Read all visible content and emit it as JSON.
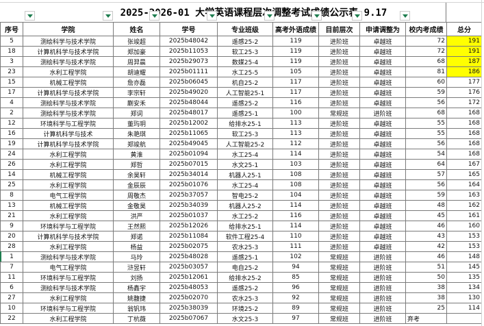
{
  "title": "2025-2026-01 大学英语课程层次调整考试成绩公示表 9.17",
  "highlight_color": "#ffff00",
  "columns": [
    "序号",
    "学院",
    "姓名",
    "学号",
    "专业班级",
    "高考外语成绩",
    "目前层次",
    "申请调整为",
    "校内考成绩",
    "总分"
  ],
  "rows": [
    [
      "5",
      "测绘科学与技术学院",
      "张竣超",
      "2025b48042",
      "遥感25-2",
      "119",
      "进阶班",
      "卓越班",
      "72",
      "191"
    ],
    [
      "18",
      "计算机科学与技术学院",
      "郑加豪",
      "2025b11053",
      "软工25-3",
      "119",
      "进阶班",
      "卓越班",
      "72",
      "191"
    ],
    [
      "3",
      "测绘科学与技术学院",
      "周羿晨",
      "2025b29073",
      "数媒25-4",
      "119",
      "进阶班",
      "卓越班",
      "68",
      "187"
    ],
    [
      "23",
      "水利工程学院",
      "胡迪耀",
      "2025b01111",
      "水工25-5",
      "105",
      "进阶班",
      "卓越班",
      "81",
      "186"
    ],
    [
      "15",
      "机械工程学院",
      "詹亦磊",
      "2025b06045",
      "机自25-2",
      "117",
      "进阶班",
      "卓越班",
      "60",
      "177"
    ],
    [
      "17",
      "计算机科学与技术学院",
      "李宗轩",
      "2025b49020",
      "人工智能25-1",
      "117",
      "进阶班",
      "卓越班",
      "59",
      "176"
    ],
    [
      "4",
      "测绘科学与技术学院",
      "蒯安禾",
      "2025b48044",
      "遥感25-2",
      "116",
      "进阶班",
      "卓越班",
      "56",
      "172"
    ],
    [
      "2",
      "测绘科学与技术学院",
      "郑词",
      "2025b48017",
      "遥感25-1",
      "100",
      "常规班",
      "进阶班",
      "68",
      "168"
    ],
    [
      "12",
      "环境科学与工程学院",
      "董玙玥",
      "2025b12002",
      "给排水25-1",
      "113",
      "进阶班",
      "卓越班",
      "55",
      "168"
    ],
    [
      "16",
      "计算机科学与技术",
      "朱艳琪",
      "2025b11065",
      "软工25-3",
      "113",
      "进阶班",
      "卓越班",
      "55",
      "168"
    ],
    [
      "19",
      "计算机科学与技术学院",
      "郑竣航",
      "2025b49045",
      "人工智能25-2",
      "112",
      "进阶班",
      "卓越班",
      "56",
      "168"
    ],
    [
      "24",
      "水利工程学院",
      "黄淮",
      "2025b01094",
      "水工25-4",
      "114",
      "进阶班",
      "卓越班",
      "54",
      "168"
    ],
    [
      "26",
      "水利工程学院",
      "郑哲",
      "2025b07015",
      "水文25-1",
      "103",
      "进阶班",
      "卓越班",
      "64",
      "167"
    ],
    [
      "14",
      "机械工程学院",
      "余昊轩",
      "2025b34014",
      "机器人25-1",
      "108",
      "进阶班",
      "卓越班",
      "57",
      "165"
    ],
    [
      "25",
      "水利工程学院",
      "金辰辰",
      "2025b01076",
      "水工25-4",
      "108",
      "进阶班",
      "卓越班",
      "56",
      "164"
    ],
    [
      "8",
      "电气工程学院",
      "周敬杰",
      "2025b37057",
      "智电25-2",
      "104",
      "进阶班",
      "卓越班",
      "59",
      "163"
    ],
    [
      "13",
      "机械工程学院",
      "金敬昊",
      "2025b34039",
      "机器人25-2",
      "114",
      "进阶班",
      "卓越班",
      "48",
      "162"
    ],
    [
      "21",
      "水利工程学院",
      "洪严",
      "2025b01037",
      "水工25-2",
      "116",
      "进阶班",
      "卓越班",
      "45",
      "161"
    ],
    [
      "9",
      "环境科学与工程学院",
      "王然熙",
      "2025b12026",
      "给排水25-1",
      "114",
      "进阶班",
      "卓越班",
      "46",
      "160"
    ],
    [
      "20",
      "计算机科学与技术学院",
      "郑诺",
      "2025b11084",
      "软件工程25-4",
      "110",
      "进阶班",
      "卓越班",
      "43",
      "153"
    ],
    [
      "28",
      "水利工程学院",
      "杨益",
      "2025b02075",
      "农水25-3",
      "111",
      "进阶班",
      "卓越班",
      "42",
      "153"
    ],
    [
      "1",
      "测绘科学与技术学院",
      "马玲",
      "2025b48028",
      "遥感25-1",
      "102",
      "常规班",
      "进阶班",
      "46",
      "148"
    ],
    [
      "7",
      "电气工程学院",
      "浒昱轩",
      "2025b03057",
      "电自25-2",
      "94",
      "常规班",
      "进阶班",
      "51",
      "145"
    ],
    [
      "11",
      "环境科学与工程学院",
      "刘扬",
      "2025b12061",
      "给排水25-2",
      "85",
      "常规班",
      "进阶班",
      "50",
      "135"
    ],
    [
      "6",
      "测绘科学与技术学院",
      "杨鑫宇",
      "2025b48053",
      "遥感25-2",
      "96",
      "常规班",
      "进阶班",
      "38",
      "134"
    ],
    [
      "27",
      "水利工程学院",
      "姚馥捷",
      "2025b02070",
      "农水25-3",
      "92",
      "常规班",
      "进阶班",
      "38",
      "130"
    ],
    [
      "10",
      "环境科学与工程学院",
      "翁钒玮",
      "2025b38039",
      "环境25-2",
      "89",
      "常规班",
      "进阶班",
      "25",
      "114"
    ],
    [
      "22",
      "水利工程学院",
      "丁杭薇",
      "2025b07067",
      "水文25-3",
      "97",
      "常规班",
      "进阶班",
      "弃考",
      ""
    ]
  ],
  "highlighted_rows": [
    0,
    1,
    2,
    3
  ]
}
